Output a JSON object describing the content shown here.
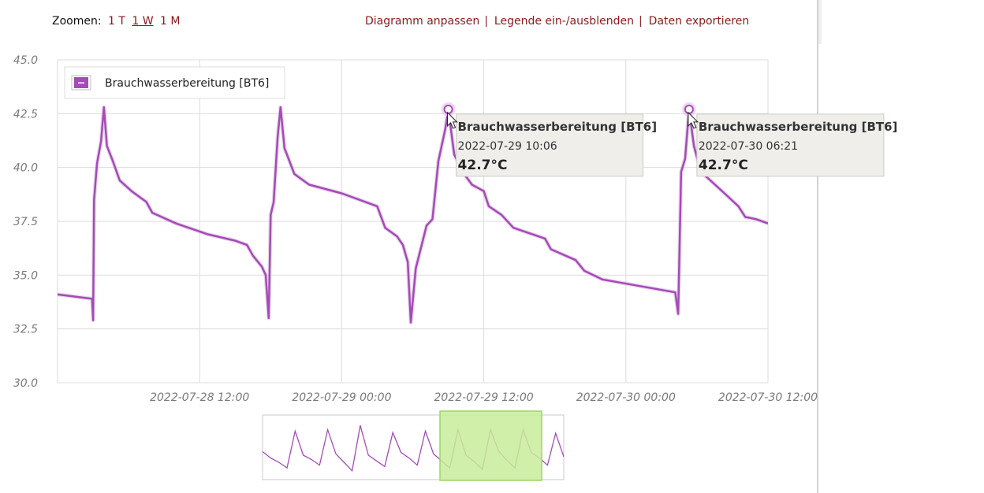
{
  "toolbar": {
    "zoom_label": "Zoomen:",
    "zoom_options": [
      "1 T",
      "1 W",
      "1 M"
    ],
    "zoom_active": "1 W",
    "actions": [
      "Diagramm anpassen",
      "Legende ein-/ausblenden",
      "Daten exportieren"
    ],
    "separator": "|"
  },
  "colors": {
    "series": "#a64ab8",
    "link": "#8b1a1a",
    "navigator_selection": "#c8ec9a"
  },
  "chart_data": {
    "type": "line",
    "x_unit": "datetime",
    "xlim": [
      "2022-07-28 00:00",
      "2022-07-30 12:00"
    ],
    "ylim": [
      30.0,
      45.0
    ],
    "yticks": [
      "30.0",
      "32.5",
      "35.0",
      "37.5",
      "40.0",
      "42.5",
      "45.0"
    ],
    "xticks": [
      "2022-07-28 12:00",
      "2022-07-29 00:00",
      "2022-07-29 12:00",
      "2022-07-30 00:00",
      "2022-07-30 12:00"
    ],
    "grid": true,
    "legend_position": "top-left",
    "series": [
      {
        "name": "Brauchwasserbereitung [BT6]",
        "points": [
          [
            "2022-07-28 00:00",
            34.1
          ],
          [
            "2022-07-28 02:55",
            33.9
          ],
          [
            "2022-07-28 03:00",
            32.9
          ],
          [
            "2022-07-28 03:05",
            38.5
          ],
          [
            "2022-07-28 03:20",
            40.2
          ],
          [
            "2022-07-28 03:40",
            41.2
          ],
          [
            "2022-07-28 03:55",
            42.8
          ],
          [
            "2022-07-28 04:10",
            41.0
          ],
          [
            "2022-07-28 04:40",
            40.3
          ],
          [
            "2022-07-28 05:15",
            39.4
          ],
          [
            "2022-07-28 06:15",
            38.9
          ],
          [
            "2022-07-28 07:30",
            38.4
          ],
          [
            "2022-07-28 08:00",
            37.9
          ],
          [
            "2022-07-28 10:00",
            37.4
          ],
          [
            "2022-07-28 12:40",
            36.9
          ],
          [
            "2022-07-28 15:00",
            36.6
          ],
          [
            "2022-07-28 16:00",
            36.4
          ],
          [
            "2022-07-28 16:30",
            35.9
          ],
          [
            "2022-07-28 17:15",
            35.4
          ],
          [
            "2022-07-28 17:35",
            35.0
          ],
          [
            "2022-07-28 17:50",
            33.0
          ],
          [
            "2022-07-28 18:00",
            37.8
          ],
          [
            "2022-07-28 18:15",
            38.4
          ],
          [
            "2022-07-28 18:35",
            41.4
          ],
          [
            "2022-07-28 18:50",
            42.8
          ],
          [
            "2022-07-28 19:10",
            40.9
          ],
          [
            "2022-07-28 19:35",
            40.3
          ],
          [
            "2022-07-28 20:00",
            39.7
          ],
          [
            "2022-07-28 21:15",
            39.2
          ],
          [
            "2022-07-29 00:00",
            38.8
          ],
          [
            "2022-07-29 03:00",
            38.2
          ],
          [
            "2022-07-29 03:40",
            37.2
          ],
          [
            "2022-07-29 04:40",
            36.8
          ],
          [
            "2022-07-29 05:10",
            36.4
          ],
          [
            "2022-07-29 05:35",
            35.6
          ],
          [
            "2022-07-29 05:50",
            32.8
          ],
          [
            "2022-07-29 06:15",
            35.3
          ],
          [
            "2022-07-29 07:10",
            37.3
          ],
          [
            "2022-07-29 07:40",
            37.6
          ],
          [
            "2022-07-29 08:10",
            40.3
          ],
          [
            "2022-07-29 08:45",
            41.8
          ],
          [
            "2022-07-29 09:00",
            42.7
          ],
          [
            "2022-07-29 09:30",
            40.6
          ],
          [
            "2022-07-29 10:20",
            39.7
          ],
          [
            "2022-07-29 11:00",
            39.2
          ],
          [
            "2022-07-29 12:00",
            38.9
          ],
          [
            "2022-07-29 12:25",
            38.2
          ],
          [
            "2022-07-29 13:30",
            37.8
          ],
          [
            "2022-07-29 14:30",
            37.2
          ],
          [
            "2022-07-29 17:10",
            36.7
          ],
          [
            "2022-07-29 17:40",
            36.2
          ],
          [
            "2022-07-29 19:45",
            35.7
          ],
          [
            "2022-07-29 20:30",
            35.2
          ],
          [
            "2022-07-29 22:00",
            34.8
          ],
          [
            "2022-07-30 04:10",
            34.2
          ],
          [
            "2022-07-30 04:25",
            33.2
          ],
          [
            "2022-07-30 04:40",
            39.8
          ],
          [
            "2022-07-30 05:00",
            40.4
          ],
          [
            "2022-07-30 05:20",
            42.7
          ],
          [
            "2022-07-30 05:45",
            41.0
          ],
          [
            "2022-07-30 06:20",
            39.8
          ],
          [
            "2022-07-30 08:20",
            38.8
          ],
          [
            "2022-07-30 09:30",
            38.2
          ],
          [
            "2022-07-30 10:05",
            37.7
          ],
          [
            "2022-07-30 11:00",
            37.6
          ],
          [
            "2022-07-30 12:00",
            37.4
          ]
        ]
      }
    ],
    "markers": [
      {
        "x": "2022-07-29 09:00",
        "y": 42.7
      },
      {
        "x": "2022-07-30 05:20",
        "y": 42.7
      }
    ],
    "tooltips": [
      {
        "series": "Brauchwasserbereitung [BT6]",
        "date": "2022-07-29 10:06",
        "value": "42.7°C"
      },
      {
        "series": "Brauchwasserbereitung [BT6]",
        "date": "2022-07-30 06:21",
        "value": "42.7°C"
      }
    ],
    "navigator": {
      "values": [
        35.5,
        34.6,
        34.0,
        33.2,
        38.4,
        35.0,
        34.4,
        33.6,
        38.6,
        35.2,
        34.0,
        32.8,
        39.2,
        35.0,
        34.2,
        33.4,
        38.2,
        35.4,
        34.6,
        33.6,
        38.4,
        35.2,
        34.2,
        33.2,
        38.6,
        35.0,
        34.1,
        33.0,
        38.6,
        35.6,
        34.3,
        33.2,
        38.6,
        35.4,
        34.6,
        33.6,
        38.1,
        34.8
      ],
      "selection": [
        "2022-07-28 00:00",
        "2022-07-30 12:00"
      ]
    }
  }
}
